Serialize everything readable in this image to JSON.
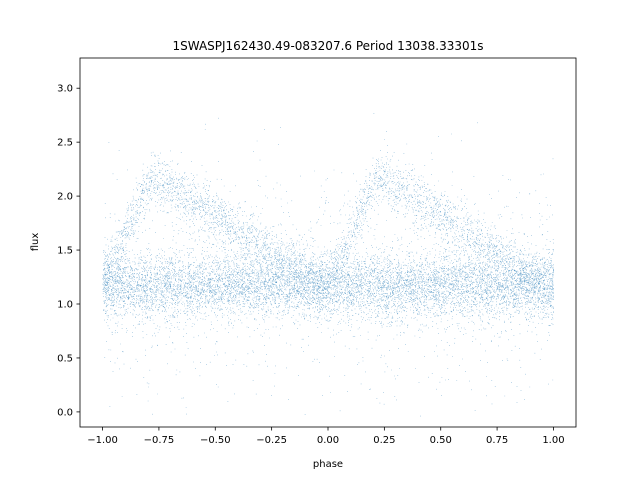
{
  "chart_data": {
    "type": "scatter",
    "title": "1SWASPJ162430.49-083207.6 Period 13038.33301s",
    "xlabel": "phase",
    "ylabel": "flux",
    "xlim": [
      -1.1,
      1.1
    ],
    "ylim": [
      -0.14,
      3.28
    ],
    "xticks": [
      -1.0,
      -0.75,
      -0.5,
      -0.25,
      0.0,
      0.25,
      0.5,
      0.75,
      1.0
    ],
    "xtick_labels": [
      "−1.00",
      "−0.75",
      "−0.50",
      "−0.25",
      "0.00",
      "0.25",
      "0.50",
      "0.75",
      "1.00"
    ],
    "yticks": [
      0.0,
      0.5,
      1.0,
      1.5,
      2.0,
      2.5,
      3.0
    ],
    "ytick_labels": [
      "0.0",
      "0.5",
      "1.0",
      "1.5",
      "2.0",
      "2.5",
      "3.0"
    ],
    "grid": false,
    "marker_color": "#1f77b4",
    "series": [
      {
        "description_points": [
          {
            "phase": -1.0,
            "flux_baseline": 1.2
          },
          {
            "phase": -0.78,
            "flux_upper_branch": 2.2
          },
          {
            "phase": -0.5,
            "flux_upper_branch": 1.85
          },
          {
            "phase": -0.25,
            "flux_upper_branch": 1.45
          },
          {
            "phase": 0.0,
            "flux_baseline": 1.15
          },
          {
            "phase": 0.22,
            "flux_upper_branch": 2.2
          },
          {
            "phase": 0.5,
            "flux_upper_branch": 1.85
          },
          {
            "phase": 0.75,
            "flux_upper_branch": 1.45
          },
          {
            "phase": 1.0,
            "flux_baseline": 1.2
          }
        ]
      }
    ]
  }
}
